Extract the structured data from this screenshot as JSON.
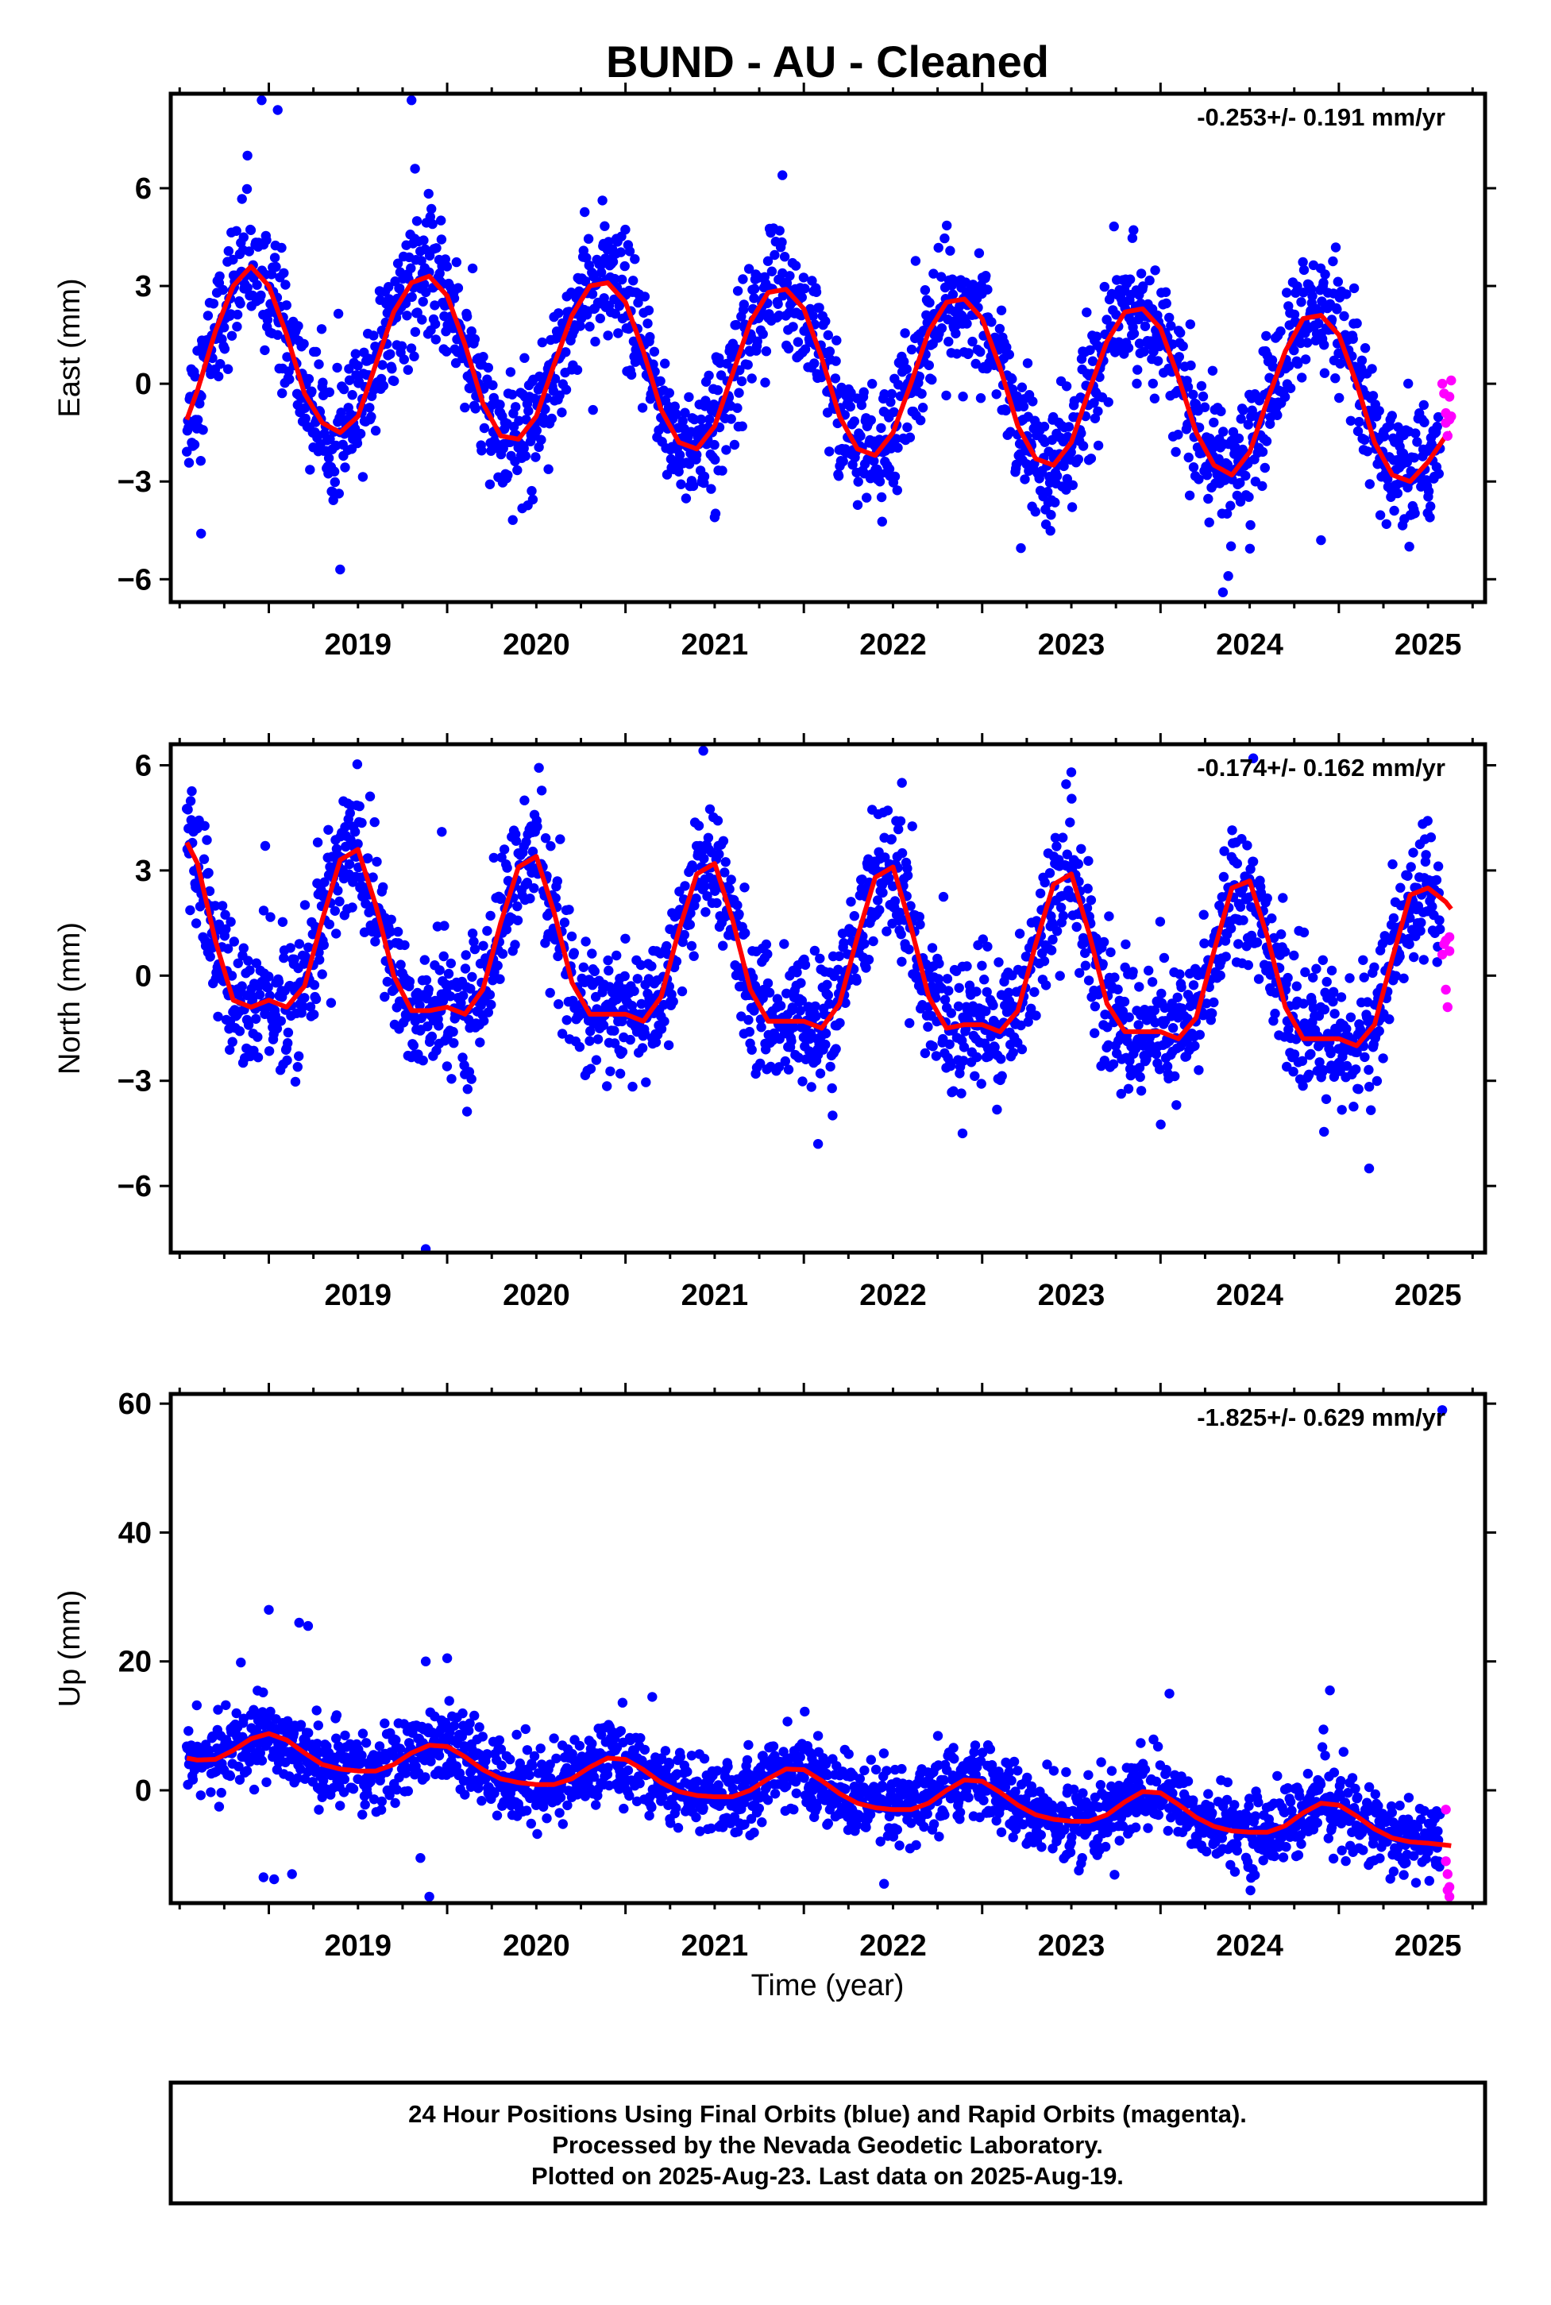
{
  "title": "BUND  - AU - Cleaned",
  "xlabel": "Time (year)",
  "footer": {
    "line1": "24 Hour Positions Using Final Orbits (blue) and Rapid Orbits (magenta).",
    "line2": "Processed by the Nevada Geodetic Laboratory.",
    "line3": "Plotted on 2025-Aug-23. Last data on 2025-Aug-19."
  },
  "colors": {
    "final": "#0000ff",
    "rapid": "#ff00ff",
    "model": "#ff0000",
    "frame": "#000000"
  },
  "chart_data": [
    {
      "type": "scatter",
      "ylabel": "East (mm)",
      "rate": "-0.253+/- 0.191 mm/yr",
      "xlim": [
        2018.45,
        2025.82
      ],
      "ylim": [
        -6.7,
        8.9
      ],
      "x_ticks": [
        2019,
        2020,
        2021,
        2022,
        2023,
        2024,
        2025
      ],
      "y_ticks": [
        -6,
        -3,
        0,
        3,
        6
      ],
      "y_tick_labels": [
        "−6",
        "−3",
        "0",
        "3",
        "6"
      ],
      "model": {
        "x": [
          2018.54,
          2018.6,
          2018.7,
          2018.8,
          2018.9,
          2019.0,
          2019.1,
          2019.2,
          2019.3,
          2019.4,
          2019.5,
          2019.6,
          2019.7,
          2019.8,
          2019.9,
          2020.0,
          2020.1,
          2020.2,
          2020.3,
          2020.4,
          2020.5,
          2020.6,
          2020.7,
          2020.8,
          2020.9,
          2021.0,
          2021.1,
          2021.2,
          2021.3,
          2021.4,
          2021.5,
          2021.6,
          2021.7,
          2021.8,
          2021.9,
          2022.0,
          2022.1,
          2022.2,
          2022.3,
          2022.4,
          2022.5,
          2022.6,
          2022.7,
          2022.8,
          2022.9,
          2023.0,
          2023.1,
          2023.2,
          2023.3,
          2023.4,
          2023.5,
          2023.6,
          2023.7,
          2023.8,
          2023.9,
          2024.0,
          2024.1,
          2024.2,
          2024.3,
          2024.4,
          2024.5,
          2024.6,
          2024.7,
          2024.8,
          2024.9,
          2025.0,
          2025.1,
          2025.2,
          2025.3,
          2025.4,
          2025.5,
          2025.6,
          2025.63
        ],
        "y": [
          -1.1,
          -0.2,
          1.6,
          3.0,
          3.6,
          3.0,
          1.5,
          -0.3,
          -1.2,
          -1.5,
          -1.0,
          0.6,
          2.2,
          3.1,
          3.3,
          2.7,
          1.2,
          -0.6,
          -1.6,
          -1.7,
          -1.0,
          0.6,
          2.1,
          3.0,
          3.1,
          2.5,
          1.0,
          -0.8,
          -1.8,
          -2.0,
          -1.3,
          0.3,
          1.9,
          2.8,
          2.9,
          2.3,
          0.8,
          -1.0,
          -2.0,
          -2.2,
          -1.5,
          0.0,
          1.6,
          2.5,
          2.6,
          2.0,
          0.5,
          -1.3,
          -2.3,
          -2.5,
          -1.8,
          -0.2,
          1.3,
          2.2,
          2.3,
          1.7,
          0.2,
          -1.5,
          -2.5,
          -2.8,
          -2.1,
          -0.5,
          1.0,
          2.0,
          2.1,
          1.5,
          0.0,
          -1.8,
          -2.8,
          -3.0,
          -2.4,
          -1.6,
          -1.5
        ],
        "trend": -0.253,
        "amplitude": [
          2.5,
          0.35
        ],
        "phase_peak": 0.85,
        "annual_offset": 1.1
      },
      "noise": 0.95,
      "outliers": [
        {
          "x": 2018.96,
          "y": 8.7
        },
        {
          "x": 2019.05,
          "y": 8.4
        },
        {
          "x": 2018.88,
          "y": 7.0
        },
        {
          "x": 2019.8,
          "y": 8.7
        },
        {
          "x": 2019.82,
          "y": 6.6
        },
        {
          "x": 2019.4,
          "y": -5.7
        },
        {
          "x": 2018.62,
          "y": -4.6
        },
        {
          "x": 2021.5,
          "y": -4.1
        },
        {
          "x": 2024.35,
          "y": -6.4
        },
        {
          "x": 2024.38,
          "y": -5.9
        },
        {
          "x": 2024.9,
          "y": -4.8
        },
        {
          "x": 2021.88,
          "y": 6.4
        }
      ],
      "rapid": {
        "x": [
          2025.58,
          2025.59,
          2025.6,
          2025.6,
          2025.61,
          2025.62,
          2025.62,
          2025.63,
          2025.63
        ],
        "y": [
          0.0,
          -0.3,
          -0.9,
          -1.2,
          -1.6,
          -1.1,
          -0.4,
          0.1,
          -1.0
        ]
      }
    },
    {
      "type": "scatter",
      "ylabel": "North (mm)",
      "rate": "-0.174+/- 0.162 mm/yr",
      "xlim": [
        2018.45,
        2025.82
      ],
      "ylim": [
        -7.9,
        6.6
      ],
      "x_ticks": [
        2019,
        2020,
        2021,
        2022,
        2023,
        2024,
        2025
      ],
      "y_ticks": [
        -6,
        -3,
        0,
        3,
        6
      ],
      "y_tick_labels": [
        "−6",
        "−3",
        "0",
        "3",
        "6"
      ],
      "model": {
        "x": [
          2018.54,
          2018.6,
          2018.7,
          2018.8,
          2018.9,
          2019.0,
          2019.1,
          2019.2,
          2019.3,
          2019.4,
          2019.5,
          2019.6,
          2019.7,
          2019.8,
          2019.9,
          2020.0,
          2020.1,
          2020.2,
          2020.3,
          2020.4,
          2020.5,
          2020.6,
          2020.7,
          2020.8,
          2020.9,
          2021.0,
          2021.1,
          2021.2,
          2021.3,
          2021.4,
          2021.5,
          2021.6,
          2021.7,
          2021.8,
          2021.9,
          2022.0,
          2022.1,
          2022.2,
          2022.3,
          2022.4,
          2022.5,
          2022.6,
          2022.7,
          2022.8,
          2022.9,
          2023.0,
          2023.1,
          2023.2,
          2023.3,
          2023.4,
          2023.5,
          2023.6,
          2023.7,
          2023.8,
          2023.9,
          2024.0,
          2024.1,
          2024.2,
          2024.3,
          2024.4,
          2024.5,
          2024.6,
          2024.7,
          2024.8,
          2024.9,
          2025.0,
          2025.1,
          2025.2,
          2025.3,
          2025.4,
          2025.5,
          2025.6,
          2025.63
        ],
        "y": [
          3.8,
          3.2,
          1.0,
          -0.7,
          -0.9,
          -0.7,
          -0.9,
          -0.3,
          1.6,
          3.3,
          3.6,
          2.0,
          0.0,
          -1.0,
          -1.0,
          -0.9,
          -1.1,
          -0.4,
          1.5,
          3.1,
          3.4,
          1.8,
          -0.2,
          -1.1,
          -1.1,
          -1.1,
          -1.3,
          -0.6,
          1.3,
          2.9,
          3.2,
          1.6,
          -0.4,
          -1.3,
          -1.3,
          -1.3,
          -1.5,
          -0.8,
          1.1,
          2.8,
          3.1,
          1.4,
          -0.6,
          -1.5,
          -1.4,
          -1.4,
          -1.6,
          -1.0,
          0.9,
          2.6,
          2.9,
          1.2,
          -0.8,
          -1.6,
          -1.6,
          -1.6,
          -1.8,
          -1.2,
          0.7,
          2.5,
          2.7,
          1.1,
          -0.9,
          -1.8,
          -1.8,
          -1.8,
          -2.0,
          -1.4,
          0.5,
          2.3,
          2.5,
          2.1,
          1.9
        ]
      },
      "noise": 0.95,
      "outliers": [
        {
          "x": 2019.88,
          "y": -7.8
        },
        {
          "x": 2022.08,
          "y": -4.8
        },
        {
          "x": 2025.17,
          "y": -5.5
        },
        {
          "x": 2019.97,
          "y": 4.1
        },
        {
          "x": 2018.98,
          "y": 3.7
        },
        {
          "x": 2022.55,
          "y": 5.5
        },
        {
          "x": 2023.5,
          "y": 5.8
        },
        {
          "x": 2024.52,
          "y": 6.2
        },
        {
          "x": 2022.89,
          "y": -4.5
        }
      ],
      "rapid": {
        "x": [
          2025.58,
          2025.59,
          2025.6,
          2025.6,
          2025.61,
          2025.62,
          2025.62
        ],
        "y": [
          0.6,
          0.9,
          1.0,
          -0.4,
          -0.9,
          0.7,
          1.1
        ]
      }
    },
    {
      "type": "scatter",
      "ylabel": "Up (mm)",
      "rate": "-1.825+/- 0.629 mm/yr",
      "xlim": [
        2018.45,
        2025.82
      ],
      "ylim": [
        -17.5,
        61.5
      ],
      "x_ticks": [
        2019,
        2020,
        2021,
        2022,
        2023,
        2024,
        2025
      ],
      "y_ticks": [
        0,
        20,
        40,
        60
      ],
      "y_tick_labels": [
        "0",
        "20",
        "40",
        "60"
      ],
      "model": {
        "x": [
          2018.54,
          2018.6,
          2018.7,
          2018.8,
          2018.9,
          2019.0,
          2019.1,
          2019.2,
          2019.3,
          2019.4,
          2019.5,
          2019.6,
          2019.7,
          2019.8,
          2019.9,
          2020.0,
          2020.1,
          2020.2,
          2020.3,
          2020.4,
          2020.5,
          2020.6,
          2020.7,
          2020.8,
          2020.9,
          2021.0,
          2021.1,
          2021.2,
          2021.3,
          2021.4,
          2021.5,
          2021.6,
          2021.7,
          2021.8,
          2021.9,
          2022.0,
          2022.1,
          2022.2,
          2022.3,
          2022.4,
          2022.5,
          2022.6,
          2022.7,
          2022.8,
          2022.9,
          2023.0,
          2023.1,
          2023.2,
          2023.3,
          2023.4,
          2023.5,
          2023.6,
          2023.7,
          2023.8,
          2023.9,
          2024.0,
          2024.1,
          2024.2,
          2024.3,
          2024.4,
          2024.5,
          2024.6,
          2024.7,
          2024.8,
          2024.9,
          2025.0,
          2025.1,
          2025.2,
          2025.3,
          2025.4,
          2025.5,
          2025.6,
          2025.63
        ],
        "y": [
          5.0,
          4.7,
          4.8,
          6.2,
          8.0,
          8.8,
          7.8,
          5.8,
          4.0,
          3.3,
          3.0,
          3.0,
          4.0,
          5.8,
          7.0,
          6.8,
          5.2,
          3.2,
          1.8,
          1.2,
          0.9,
          0.9,
          1.8,
          3.6,
          5.0,
          4.8,
          3.2,
          1.2,
          -0.2,
          -0.8,
          -1.0,
          -1.0,
          0.0,
          1.8,
          3.3,
          3.2,
          1.5,
          -0.5,
          -2.0,
          -2.7,
          -3.0,
          -3.0,
          -2.0,
          0.0,
          1.6,
          1.4,
          -0.3,
          -2.3,
          -3.8,
          -4.5,
          -4.8,
          -4.8,
          -3.8,
          -1.8,
          -0.2,
          -0.4,
          -2.2,
          -4.2,
          -5.6,
          -6.3,
          -6.5,
          -6.5,
          -5.5,
          -3.5,
          -2.0,
          -2.3,
          -4.0,
          -6.0,
          -7.4,
          -8.0,
          -8.2,
          -8.5,
          -8.6
        ]
      },
      "noise": 3.0,
      "outliers": [
        {
          "x": 2019.0,
          "y": 28.0
        },
        {
          "x": 2019.17,
          "y": 26.0
        },
        {
          "x": 2019.22,
          "y": 25.5
        },
        {
          "x": 2019.88,
          "y": 20.0
        },
        {
          "x": 2020.0,
          "y": 20.5
        },
        {
          "x": 2019.9,
          "y": -16.5
        },
        {
          "x": 2018.97,
          "y": -13.5
        },
        {
          "x": 2019.03,
          "y": -13.8
        },
        {
          "x": 2019.13,
          "y": -13.0
        },
        {
          "x": 2019.85,
          "y": -10.5
        },
        {
          "x": 2022.45,
          "y": -14.5
        },
        {
          "x": 2024.95,
          "y": 15.5
        },
        {
          "x": 2024.05,
          "y": 15.0
        },
        {
          "x": 2021.15,
          "y": 14.5
        },
        {
          "x": 2025.58,
          "y": 59.0
        }
      ],
      "rapid": {
        "x": [
          2025.6,
          2025.61,
          2025.61,
          2025.62,
          2025.62,
          2025.6
        ],
        "y": [
          -3.0,
          -13.0,
          -15.5,
          -16.5,
          -15.0,
          -11.0
        ]
      }
    }
  ]
}
